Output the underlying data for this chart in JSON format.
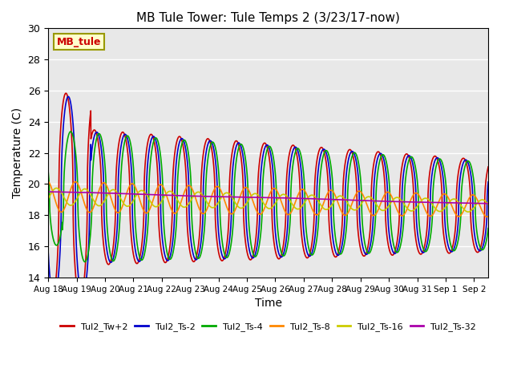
{
  "title": "MB Tule Tower: Tule Temps 2 (3/23/17-now)",
  "xlabel": "Time",
  "ylabel": "Temperature (C)",
  "ylim": [
    14,
    30
  ],
  "yticks": [
    14,
    16,
    18,
    20,
    22,
    24,
    26,
    28,
    30
  ],
  "background_color": "#e8e8e8",
  "legend_label": "MB_tule",
  "series_colors": {
    "Tul2_Tw+2": "#cc0000",
    "Tul2_Ts-2": "#0000cc",
    "Tul2_Ts-4": "#00aa00",
    "Tul2_Ts-8": "#ff8800",
    "Tul2_Ts-16": "#cccc00",
    "Tul2_Ts-32": "#aa00aa"
  },
  "series_names": [
    "Tul2_Tw+2",
    "Tul2_Ts-2",
    "Tul2_Ts-4",
    "Tul2_Ts-8",
    "Tul2_Ts-16",
    "Tul2_Ts-32"
  ],
  "xtick_labels": [
    "Aug 18",
    "Aug 19",
    "Aug 20",
    "Aug 21",
    "Aug 22",
    "Aug 23",
    "Aug 24",
    "Aug 25",
    "Aug 26",
    "Aug 27",
    "Aug 28",
    "Aug 29",
    "Aug 30",
    "Aug 31",
    "Sep 1",
    "Sep 2"
  ],
  "lw": 1.2
}
